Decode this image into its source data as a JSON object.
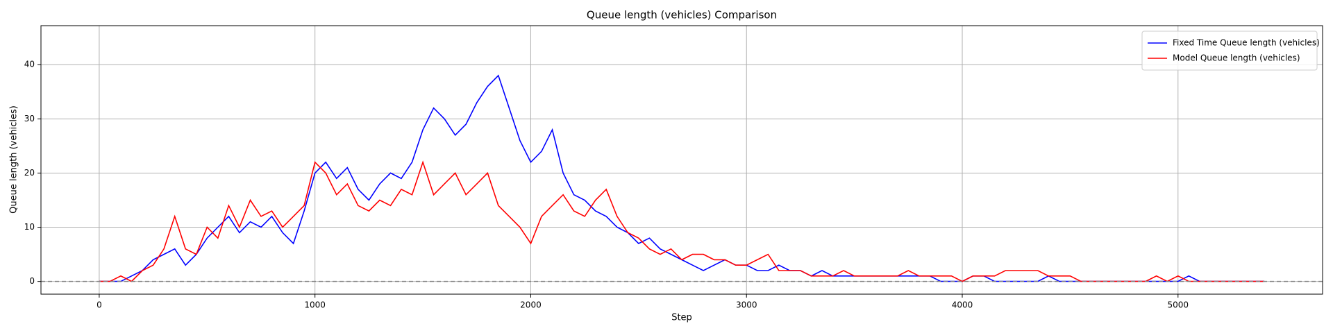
{
  "chart_data": {
    "type": "line",
    "title": "Queue length (vehicles) Comparison",
    "x_label": "Step",
    "y_label": "Queue length (vehicles)",
    "x": [
      0,
      50,
      100,
      150,
      200,
      250,
      300,
      350,
      400,
      450,
      500,
      550,
      600,
      650,
      700,
      750,
      800,
      850,
      900,
      950,
      1000,
      1050,
      1100,
      1150,
      1200,
      1250,
      1300,
      1350,
      1400,
      1450,
      1500,
      1550,
      1600,
      1650,
      1700,
      1750,
      1800,
      1850,
      1900,
      1950,
      2000,
      2050,
      2100,
      2150,
      2200,
      2250,
      2300,
      2350,
      2400,
      2450,
      2500,
      2550,
      2600,
      2650,
      2700,
      2750,
      2800,
      2850,
      2900,
      2950,
      3000,
      3050,
      3100,
      3150,
      3200,
      3250,
      3300,
      3350,
      3400,
      3450,
      3500,
      3550,
      3600,
      3650,
      3700,
      3750,
      3800,
      3850,
      3900,
      3950,
      4000,
      4050,
      4100,
      4150,
      4200,
      4250,
      4300,
      4350,
      4400,
      4450,
      4500,
      4550,
      4600,
      4650,
      4700,
      4750,
      4800,
      4850,
      4900,
      4950,
      5000,
      5050,
      5100,
      5150,
      5200,
      5250,
      5300,
      5350,
      5400
    ],
    "series": [
      {
        "name": "Fixed Time Queue length (vehicles)",
        "color": "#0000ff",
        "values": [
          0,
          0,
          0,
          1,
          2,
          4,
          5,
          6,
          3,
          5,
          8,
          10,
          12,
          9,
          11,
          10,
          12,
          9,
          7,
          13,
          20,
          22,
          19,
          21,
          17,
          15,
          18,
          20,
          19,
          22,
          28,
          32,
          30,
          27,
          29,
          33,
          36,
          38,
          32,
          26,
          22,
          24,
          28,
          20,
          16,
          15,
          13,
          12,
          10,
          9,
          7,
          8,
          6,
          5,
          4,
          3,
          2,
          3,
          4,
          3,
          3,
          2,
          2,
          3,
          2,
          2,
          1,
          2,
          1,
          1,
          1,
          1,
          1,
          1,
          1,
          1,
          1,
          1,
          0,
          0,
          0,
          1,
          1,
          0,
          0,
          0,
          0,
          0,
          1,
          0,
          0,
          0,
          0,
          0,
          0,
          0,
          0,
          0,
          0,
          0,
          0,
          1,
          0,
          0,
          0,
          0,
          0,
          0,
          0
        ]
      },
      {
        "name": "Model Queue length (vehicles)",
        "color": "#ff0000",
        "values": [
          0,
          0,
          1,
          0,
          2,
          3,
          6,
          12,
          6,
          5,
          10,
          8,
          14,
          10,
          15,
          12,
          13,
          10,
          12,
          14,
          22,
          20,
          16,
          18,
          14,
          13,
          15,
          14,
          17,
          16,
          22,
          16,
          18,
          20,
          16,
          18,
          20,
          14,
          12,
          10,
          7,
          12,
          14,
          16,
          13,
          12,
          15,
          17,
          12,
          9,
          8,
          6,
          5,
          6,
          4,
          5,
          5,
          4,
          4,
          3,
          3,
          4,
          5,
          2,
          2,
          2,
          1,
          1,
          1,
          2,
          1,
          1,
          1,
          1,
          1,
          2,
          1,
          1,
          1,
          1,
          0,
          1,
          1,
          1,
          2,
          2,
          2,
          2,
          1,
          1,
          1,
          0,
          0,
          0,
          0,
          0,
          0,
          0,
          1,
          0,
          1,
          0,
          0,
          0,
          0,
          0,
          0,
          0,
          0
        ]
      }
    ],
    "reference_line": 0,
    "xlim": [
      -270,
      5670
    ],
    "xticks": [
      0,
      1000,
      2000,
      3000,
      4000,
      5000
    ],
    "ylim": [
      -2.35,
      47.2
    ],
    "yticks": [
      0,
      10,
      20,
      30,
      40
    ],
    "grid": true,
    "legend": "upper right"
  }
}
